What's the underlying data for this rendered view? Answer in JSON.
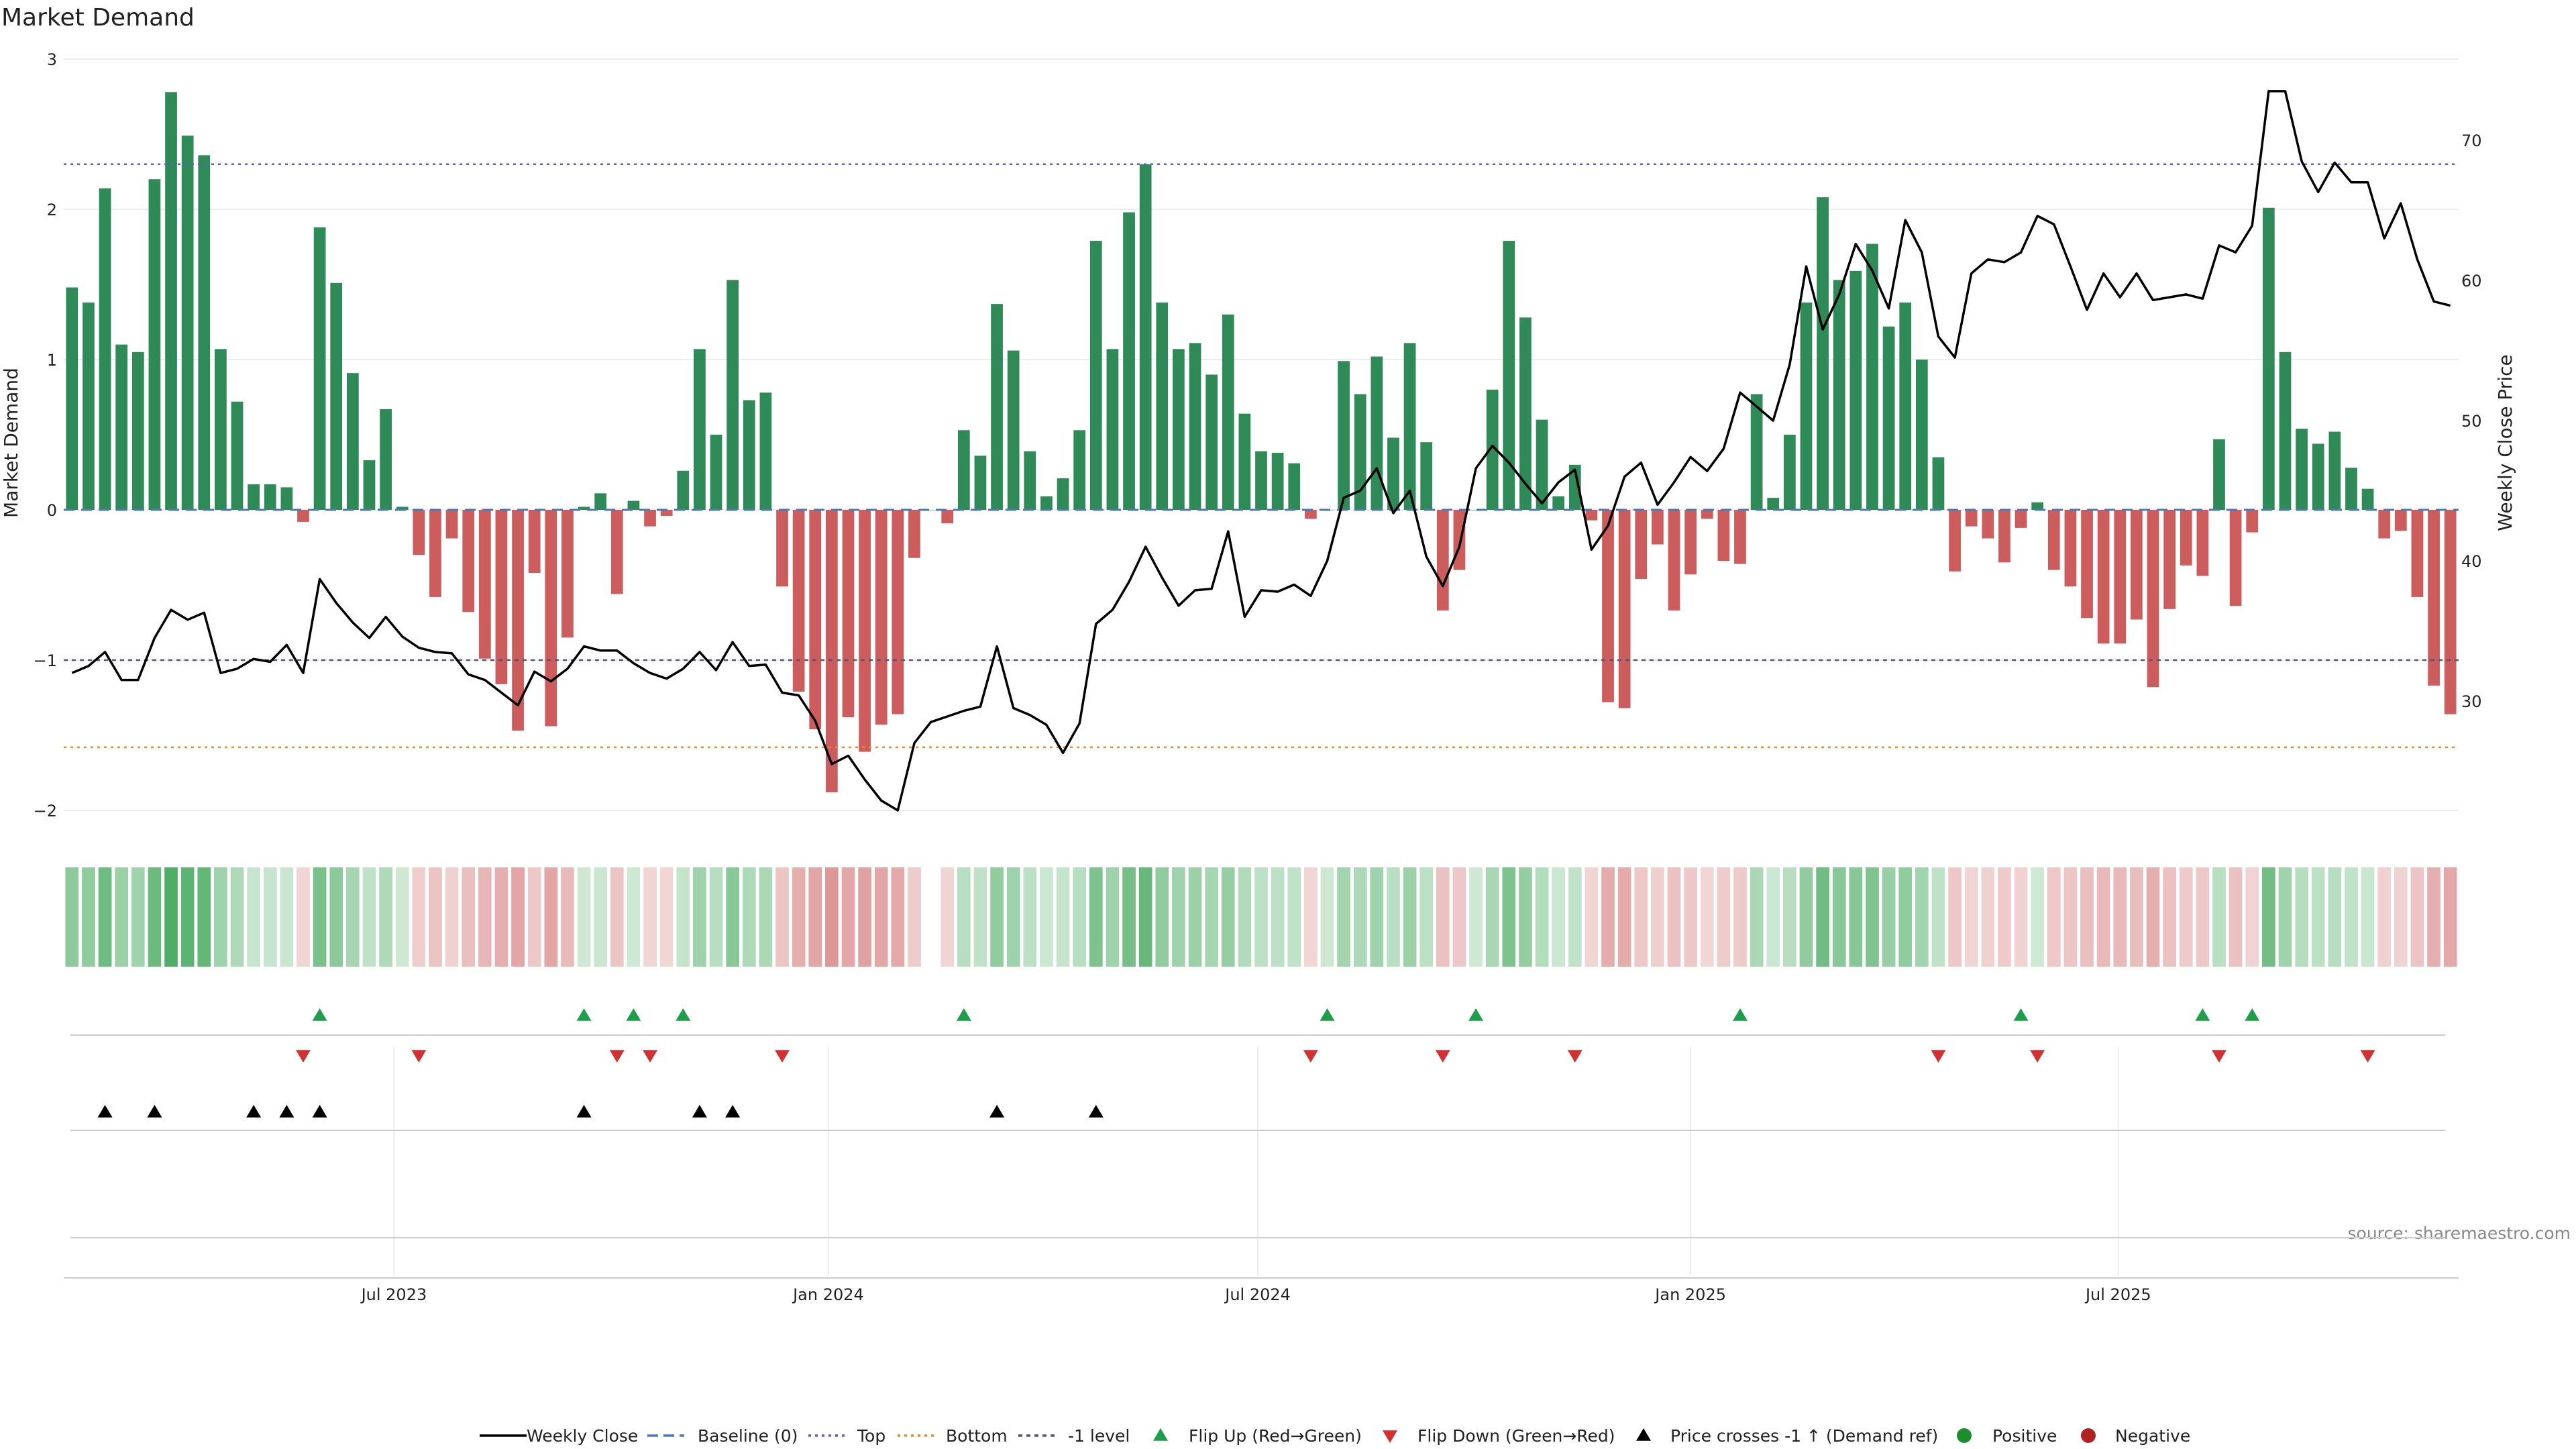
{
  "chart_data": {
    "type": "bar",
    "title": "Market Demand",
    "ylabel": "Market Demand",
    "y2label": "Weekly Close Price",
    "ylim": [
      -2.2,
      3.0
    ],
    "y2lim": [
      22,
      77
    ],
    "yticks": [
      -2,
      -1,
      0,
      1,
      2,
      3
    ],
    "yticklabels": [
      "−2",
      "−1",
      "0",
      "1",
      "2",
      "3"
    ],
    "y2ticks": [
      30,
      40,
      50,
      60,
      70
    ],
    "xticklabels": [
      "Jul 2023",
      "Jan 2024",
      "Jul 2024",
      "Jan 2025",
      "Jul 2025"
    ],
    "xtick_positions_week_index": [
      20,
      46.3,
      72.3,
      98.5,
      124.4
    ],
    "reference_lines": {
      "top": 2.3,
      "bottom": -1.58,
      "minus_one": -1.0,
      "baseline": 0
    },
    "demand": [
      1.48,
      1.38,
      2.14,
      1.1,
      1.05,
      2.2,
      2.78,
      2.49,
      2.36,
      1.07,
      0.72,
      0.17,
      0.17,
      0.15,
      -0.08,
      1.88,
      1.51,
      0.91,
      0.33,
      0.67,
      0.02,
      -0.3,
      -0.58,
      -0.19,
      -0.68,
      -0.99,
      -1.16,
      -1.47,
      -0.42,
      -1.44,
      -0.85,
      0.02,
      0.11,
      -0.56,
      0.06,
      -0.11,
      -0.04,
      0.26,
      1.07,
      0.5,
      1.53,
      0.73,
      0.78,
      -0.51,
      -1.21,
      -1.46,
      -1.88,
      -1.38,
      -1.61,
      -1.43,
      -1.36,
      -0.32,
      0.0,
      -0.09,
      0.53,
      0.36,
      1.37,
      1.06,
      0.39,
      0.09,
      0.21,
      0.53,
      1.79,
      1.07,
      1.98,
      2.3,
      1.38,
      1.07,
      1.11,
      0.9,
      1.3,
      0.64,
      0.39,
      0.38,
      0.31,
      -0.06,
      0.0,
      0.99,
      0.77,
      1.02,
      0.48,
      1.11,
      0.45,
      -0.67,
      -0.4,
      0.0,
      0.8,
      1.79,
      1.28,
      0.6,
      0.09,
      0.3,
      -0.07,
      -1.28,
      -1.32,
      -0.46,
      -0.23,
      -0.67,
      -0.43,
      -0.06,
      -0.34,
      -0.36,
      0.77,
      0.08,
      0.5,
      1.38,
      2.08,
      1.53,
      1.59,
      1.77,
      1.22,
      1.38,
      1.0,
      0.35,
      -0.41,
      -0.11,
      -0.19,
      -0.35,
      -0.12,
      0.05,
      -0.4,
      -0.51,
      -0.72,
      -0.89,
      -0.89,
      -0.73,
      -1.18,
      -0.66,
      -0.37,
      -0.44,
      0.47,
      -0.64,
      -0.15,
      2.01,
      1.05,
      0.54,
      0.44,
      0.52,
      0.28,
      0.14,
      -0.19,
      -0.14,
      -0.58,
      -1.17,
      -1.36
    ],
    "weekly_close": [
      32.0,
      32.5,
      33.5,
      31.5,
      31.5,
      34.5,
      36.5,
      35.8,
      36.3,
      32.0,
      32.3,
      33.0,
      32.8,
      34.0,
      32.0,
      38.7,
      37.0,
      35.6,
      34.5,
      36.0,
      34.6,
      33.8,
      33.5,
      33.4,
      31.9,
      31.5,
      30.6,
      29.7,
      32.1,
      31.4,
      32.3,
      33.9,
      33.6,
      33.6,
      32.7,
      32.0,
      31.6,
      32.3,
      33.5,
      32.2,
      34.2,
      32.5,
      32.6,
      30.6,
      30.4,
      28.6,
      25.5,
      26.1,
      24.4,
      22.9,
      22.2,
      27.0,
      28.5,
      28.9,
      29.3,
      29.6,
      33.9,
      29.5,
      29.0,
      28.3,
      26.3,
      28.4,
      35.5,
      36.5,
      38.5,
      41.0,
      38.8,
      36.8,
      37.9,
      38.0,
      42.1,
      36.0,
      37.9,
      37.8,
      38.3,
      37.5,
      40.0,
      44.5,
      45.0,
      46.6,
      43.4,
      45.0,
      40.3,
      38.2,
      41.0,
      46.6,
      48.2,
      47.0,
      45.5,
      44.1,
      45.6,
      46.5,
      40.8,
      42.5,
      46.0,
      47.0,
      44.0,
      45.6,
      47.4,
      46.4,
      48.0,
      52.0,
      51.0,
      50.0,
      54.0,
      61.0,
      56.5,
      59.0,
      62.6,
      60.7,
      58.0,
      64.3,
      62.0,
      56.0,
      54.5,
      60.5,
      61.5,
      61.3,
      62.0,
      64.6,
      64.0,
      61.0,
      57.9,
      60.5,
      58.8,
      60.5,
      58.6,
      58.8,
      59.0,
      58.7,
      62.5,
      62.0,
      63.9,
      73.5,
      73.5,
      68.5,
      66.3,
      68.4,
      67.0,
      67.0,
      63.0,
      65.5,
      61.5,
      58.5,
      58.2
    ],
    "heat_gap_index": 52,
    "flip_up": [
      15,
      31,
      34,
      37,
      54,
      76,
      85,
      101,
      118,
      129,
      132
    ],
    "flip_down": [
      14,
      21,
      33,
      35,
      43,
      75,
      83,
      91,
      113,
      119,
      130,
      139
    ],
    "price_cross_up": [
      2,
      5,
      11,
      13,
      15,
      31,
      38,
      40,
      56,
      62
    ],
    "legend": [
      "Weekly Close",
      "Baseline (0)",
      "Top",
      "Bottom",
      "-1 level",
      "Flip Up (Red→Green)",
      "Flip Down (Green→Red)",
      "Price crosses -1 ↑ (Demand ref)",
      "Positive",
      "Negative"
    ],
    "source": "source: sharemaestro.com",
    "colors": {
      "positive_bar": "#2e8b57",
      "negative_bar": "#cd5c5c",
      "price_line": "#000000",
      "baseline": "#4a7ab8",
      "top_line": "#6a5acd",
      "bottom_line": "#ee8a2a",
      "minus_one_line": "#555577",
      "flip_up": "#1e9e4a",
      "flip_down": "#d62f2f",
      "price_cross": "#000000",
      "positive_dot": "#1a8f2c",
      "negative_dot": "#b22222"
    }
  }
}
